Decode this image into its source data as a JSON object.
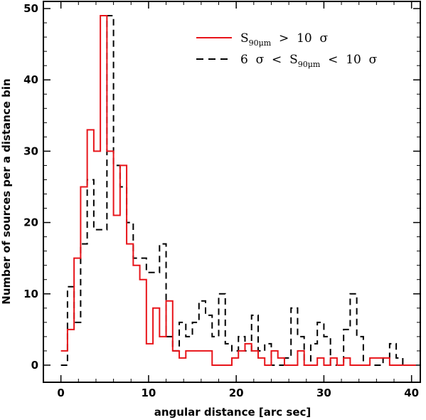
{
  "chart_data": {
    "type": "histogram",
    "xlabel": "angular distance [arc sec]",
    "ylabel": "Number of sources per a distance bin",
    "xlim": [
      -2,
      41
    ],
    "ylim": [
      -2.4,
      51
    ],
    "xticks": [
      "0",
      "10",
      "20",
      "30",
      "40"
    ],
    "yticks": [
      "0",
      "10",
      "20",
      "30",
      "40",
      "50"
    ],
    "grid": false,
    "legend_position": "top-right",
    "series": [
      {
        "name": "S90μm > 10 σ",
        "legend_text": {
          "s": "S",
          "sub": "90μm",
          "rest": "  >  10  σ"
        },
        "color": "#e8141a",
        "dash": "solid",
        "bin_starts": [
          0,
          0.75,
          1.5,
          2.25,
          3.0,
          3.75,
          4.5,
          5.25,
          6.0,
          6.75,
          7.5,
          8.25,
          9.0,
          9.75,
          10.5,
          11.25,
          12.0,
          12.75,
          13.5,
          14.25,
          15.0,
          15.75,
          16.5,
          17.25,
          18.0,
          18.75,
          19.5,
          20.25,
          21.0,
          21.75,
          22.5,
          23.25,
          24.0,
          24.75,
          25.5,
          26.25,
          27.0,
          27.75,
          28.5,
          29.25,
          30.0,
          30.75,
          31.5,
          32.25,
          33.0,
          33.75,
          34.5,
          35.25,
          36.0,
          36.75,
          37.5,
          38.25,
          39.0,
          39.75
        ],
        "values": [
          2,
          5,
          15,
          25,
          33,
          30,
          49,
          30,
          21,
          28,
          17,
          14,
          12,
          3,
          8,
          4,
          9,
          2,
          1,
          2,
          2,
          2,
          2,
          0,
          0,
          0,
          1,
          2,
          3,
          2,
          1,
          0,
          2,
          1,
          0,
          0,
          2,
          0,
          0,
          1,
          0,
          1,
          0,
          1,
          0,
          0,
          0,
          1,
          1,
          1,
          0,
          0,
          0,
          0
        ],
        "bin_width": 0.75
      },
      {
        "name": "6 σ < S90μm < 10 σ",
        "legend_text": {
          "pre": "6  σ  <  ",
          "s": "S",
          "sub": "90μm",
          "rest": "  <  10  σ"
        },
        "color": "#000000",
        "dash": "dashed",
        "bin_starts": [
          0,
          0.75,
          1.5,
          2.25,
          3.0,
          3.75,
          4.5,
          5.25,
          6.0,
          6.75,
          7.5,
          8.25,
          9.0,
          9.75,
          10.5,
          11.25,
          12.0,
          12.75,
          13.5,
          14.25,
          15.0,
          15.75,
          16.5,
          17.25,
          18.0,
          18.75,
          19.5,
          20.25,
          21.0,
          21.75,
          22.5,
          23.25,
          24.0,
          24.75,
          25.5,
          26.25,
          27.0,
          27.75,
          28.5,
          29.25,
          30.0,
          30.75,
          31.5,
          32.25,
          33.0,
          33.75,
          34.5,
          35.25,
          36.0,
          36.75,
          37.5,
          38.25,
          39.0,
          39.75
        ],
        "values": [
          0,
          11,
          6,
          17,
          26,
          19,
          19,
          49,
          28,
          25,
          20,
          15,
          15,
          13,
          13,
          17,
          4,
          2,
          6,
          4,
          6,
          9,
          7,
          4,
          10,
          3,
          2,
          4,
          2,
          7,
          2,
          3,
          0,
          0,
          1,
          8,
          4,
          0,
          3,
          6,
          4,
          0,
          0,
          5,
          10,
          4,
          0,
          0,
          0,
          1,
          3,
          1,
          0,
          0
        ],
        "bin_width": 0.75
      }
    ]
  }
}
